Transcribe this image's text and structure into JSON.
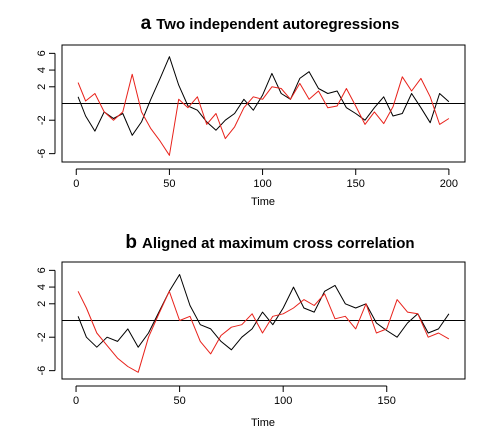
{
  "chart_data": [
    {
      "type": "line",
      "panel_letter": "a",
      "title": "Two independent autoregressions",
      "xlabel": "Time",
      "ylabel": "",
      "xlim": [
        1,
        200
      ],
      "ylim": [
        -7,
        7
      ],
      "x_ticks": [
        "0",
        "50",
        "100",
        "150",
        "200"
      ],
      "y_ticks": [
        "-6",
        "-2",
        "2",
        "4",
        "6"
      ],
      "reference_line_y": 0,
      "grid": false,
      "legend": "none",
      "series": [
        {
          "color": "#000000",
          "x": [
            1,
            5,
            10,
            15,
            20,
            25,
            30,
            35,
            40,
            45,
            50,
            55,
            60,
            65,
            70,
            75,
            80,
            85,
            90,
            95,
            100,
            105,
            110,
            115,
            120,
            125,
            130,
            135,
            140,
            145,
            150,
            155,
            160,
            165,
            170,
            175,
            180,
            185,
            190,
            195,
            200
          ],
          "values": [
            0.8,
            -1.5,
            -3.3,
            -1.0,
            -1.8,
            -1.2,
            -3.8,
            -2.2,
            0.5,
            3.0,
            5.6,
            2.2,
            -0.3,
            -0.8,
            -2.2,
            -3.2,
            -2.0,
            -1.2,
            0.5,
            -0.8,
            1.0,
            3.6,
            1.2,
            0.5,
            3.0,
            3.8,
            1.8,
            1.2,
            1.5,
            -0.5,
            -1.2,
            -2.0,
            -0.5,
            0.8,
            -1.5,
            -1.2,
            1.2,
            -0.5,
            -2.3,
            1.2,
            0.2
          ]
        },
        {
          "color": "#e8221b",
          "x": [
            1,
            5,
            10,
            15,
            20,
            25,
            30,
            35,
            40,
            45,
            50,
            55,
            60,
            65,
            70,
            75,
            80,
            85,
            90,
            95,
            100,
            105,
            110,
            115,
            120,
            125,
            130,
            135,
            140,
            145,
            150,
            155,
            160,
            165,
            170,
            175,
            180,
            185,
            190,
            195,
            200
          ],
          "values": [
            2.5,
            0.3,
            1.2,
            -1.0,
            -2.0,
            -1.0,
            3.5,
            -1.0,
            -3.0,
            -4.5,
            -6.2,
            0.5,
            -0.5,
            0.8,
            -2.5,
            -1.2,
            -4.2,
            -2.8,
            -0.5,
            0.8,
            0.5,
            2.0,
            1.8,
            0.5,
            2.4,
            0.5,
            1.5,
            -0.5,
            -0.3,
            1.8,
            -0.3,
            -2.5,
            -1.0,
            -2.4,
            -0.4,
            3.2,
            1.5,
            3.0,
            0.8,
            -2.5,
            -1.8
          ]
        }
      ]
    },
    {
      "type": "line",
      "panel_letter": "b",
      "title": "Aligned at maximum cross correlation",
      "xlabel": "Time",
      "ylabel": "",
      "xlim": [
        1,
        180
      ],
      "ylim": [
        -7,
        7
      ],
      "x_ticks": [
        "0",
        "50",
        "100",
        "150"
      ],
      "y_ticks": [
        "-6",
        "-2",
        "2",
        "4",
        "6"
      ],
      "reference_line_y": 0,
      "grid": false,
      "legend": "none",
      "series": [
        {
          "color": "#000000",
          "x": [
            1,
            5,
            10,
            15,
            20,
            25,
            30,
            35,
            40,
            45,
            50,
            55,
            60,
            65,
            70,
            75,
            80,
            85,
            90,
            95,
            100,
            105,
            110,
            115,
            120,
            125,
            130,
            135,
            140,
            145,
            150,
            155,
            160,
            165,
            170,
            175,
            180
          ],
          "values": [
            0.5,
            -2.0,
            -3.2,
            -2.0,
            -2.5,
            -1.0,
            -3.2,
            -1.5,
            1.0,
            3.5,
            5.5,
            1.8,
            -0.5,
            -1.0,
            -2.5,
            -3.5,
            -2.0,
            -1.0,
            1.0,
            -0.5,
            1.5,
            4.0,
            1.5,
            1.0,
            3.5,
            4.2,
            2.0,
            1.5,
            2.0,
            -0.3,
            -1.2,
            -2.0,
            -0.3,
            0.8,
            -1.5,
            -1.0,
            0.8
          ]
        },
        {
          "color": "#e8221b",
          "x": [
            1,
            5,
            10,
            15,
            20,
            25,
            30,
            35,
            40,
            45,
            50,
            55,
            60,
            65,
            70,
            75,
            80,
            85,
            90,
            95,
            100,
            105,
            110,
            115,
            120,
            125,
            130,
            135,
            140,
            145,
            150,
            155,
            160,
            165,
            170,
            175,
            180
          ],
          "values": [
            3.5,
            1.5,
            -1.5,
            -3.0,
            -4.5,
            -5.5,
            -6.2,
            -2.0,
            0.8,
            3.5,
            0.0,
            0.5,
            -2.5,
            -4.0,
            -1.8,
            -0.8,
            -0.5,
            0.8,
            -1.5,
            0.5,
            0.8,
            1.5,
            2.5,
            1.8,
            3.2,
            0.2,
            0.5,
            -1.0,
            2.0,
            -1.5,
            -1.0,
            2.5,
            1.0,
            0.8,
            -2.0,
            -1.5,
            -2.2
          ]
        }
      ]
    }
  ]
}
